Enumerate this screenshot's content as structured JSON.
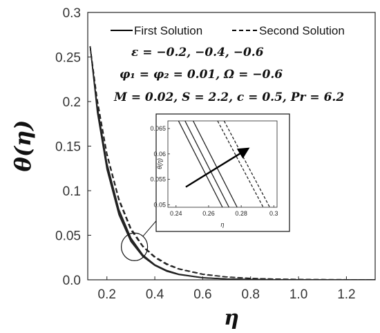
{
  "chart_data": {
    "type": "line",
    "title": "",
    "xlabel": "η",
    "ylabel": "θ(η)",
    "xlim": [
      0.12,
      1.32
    ],
    "ylim": [
      0,
      0.3
    ],
    "x_ticks": [
      "0.2",
      "0.4",
      "0.6",
      "0.8",
      "1.0",
      "1.2"
    ],
    "y_ticks": [
      "0.0",
      "0.05",
      "0.1",
      "0.15",
      "0.2",
      "0.25",
      "0.3"
    ],
    "legend": {
      "position": "top",
      "entries": [
        {
          "label": "First Solution",
          "style": "solid"
        },
        {
          "label": "Second Solution",
          "style": "dashed"
        }
      ]
    },
    "annotations": {
      "epsilon": "ε = −0.2, −0.4, −0.6",
      "phi": "φ₁ = φ₂ = 0.01, Ω = −0.6",
      "params": "M = 0.02, S = 2.2, c = 0.5, Pr = 6.2"
    },
    "x": [
      0.13,
      0.16,
      0.2,
      0.25,
      0.3,
      0.35,
      0.4,
      0.45,
      0.5,
      0.6,
      0.7,
      0.8,
      0.9,
      1.0,
      1.1,
      1.2,
      1.32
    ],
    "series": [
      {
        "name": "First Solution",
        "epsilon": -0.2,
        "style": "solid",
        "values": [
          0.262,
          0.188,
          0.124,
          0.073,
          0.043,
          0.026,
          0.016,
          0.0095,
          0.0058,
          0.0022,
          0.0009,
          0.0004,
          0.0002,
          0.0001,
          0.0,
          0.0,
          0.0
        ]
      },
      {
        "name": "First Solution",
        "epsilon": -0.4,
        "style": "solid",
        "values": [
          0.262,
          0.191,
          0.127,
          0.076,
          0.045,
          0.027,
          0.0165,
          0.01,
          0.006,
          0.0023,
          0.0009,
          0.0004,
          0.0002,
          0.0001,
          0.0,
          0.0,
          0.0
        ]
      },
      {
        "name": "First Solution",
        "epsilon": -0.6,
        "style": "solid",
        "values": [
          0.262,
          0.194,
          0.131,
          0.079,
          0.047,
          0.028,
          0.017,
          0.0105,
          0.0064,
          0.0025,
          0.001,
          0.0004,
          0.0002,
          0.0001,
          0.0,
          0.0,
          0.0
        ]
      },
      {
        "name": "Second Solution",
        "epsilon": -0.2,
        "style": "dashed",
        "values": [
          0.262,
          0.2,
          0.14,
          0.089,
          0.056,
          0.037,
          0.025,
          0.017,
          0.012,
          0.006,
          0.0031,
          0.0016,
          0.0009,
          0.0005,
          0.0003,
          0.0002,
          0.0001
        ]
      },
      {
        "name": "Second Solution",
        "epsilon": -0.4,
        "style": "dashed",
        "values": [
          0.262,
          0.202,
          0.142,
          0.091,
          0.058,
          0.038,
          0.026,
          0.018,
          0.0125,
          0.0064,
          0.0033,
          0.0017,
          0.0009,
          0.0005,
          0.0003,
          0.0002,
          0.0001
        ]
      }
    ],
    "inset": {
      "xlim": [
        0.235,
        0.302
      ],
      "ylim": [
        0.0495,
        0.0665
      ],
      "x_ticks": [
        "0.24",
        "0.26",
        "0.28",
        "0.3"
      ],
      "y_ticks": [
        "0.05",
        "0.055",
        "0.06",
        "0.065"
      ],
      "xlabel": "η",
      "ylabel": "θ(η)",
      "series": [
        {
          "style": "solid",
          "points": [
            [
              0.2415,
              0.0665
            ],
            [
              0.2685,
              0.0495
            ]
          ]
        },
        {
          "style": "solid",
          "points": [
            [
              0.2455,
              0.0665
            ],
            [
              0.2725,
              0.0495
            ]
          ]
        },
        {
          "style": "solid",
          "points": [
            [
              0.2505,
              0.0665
            ],
            [
              0.2775,
              0.0495
            ]
          ]
        },
        {
          "style": "dashed",
          "points": [
            [
              0.2655,
              0.0665
            ],
            [
              0.2935,
              0.0495
            ]
          ]
        },
        {
          "style": "dashed",
          "points": [
            [
              0.2695,
              0.0665
            ],
            [
              0.2975,
              0.0495
            ]
          ]
        }
      ],
      "arrow": {
        "from": [
          0.246,
          0.0535
        ],
        "to": [
          0.284,
          0.061
        ]
      }
    },
    "zoom_region": {
      "x": 0.315,
      "y": 0.037
    }
  }
}
